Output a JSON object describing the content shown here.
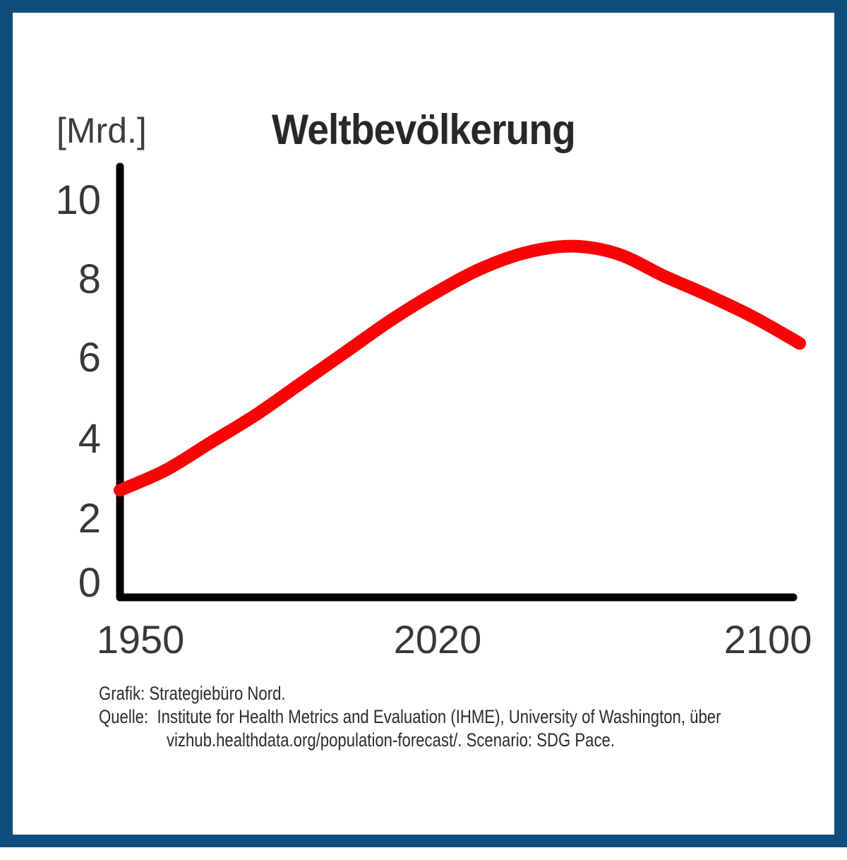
{
  "frame": {
    "border_color": "#114d7a"
  },
  "chart": {
    "title": "Weltbevölkerung",
    "y_axis_unit_label": "[Mrd.]",
    "y_ticks": [
      "10",
      "8",
      "6",
      "4",
      "2",
      "0"
    ],
    "x_ticks": [
      "1950",
      "2020",
      "2100"
    ],
    "axis_color": "#000000"
  },
  "credits": {
    "line1": "Grafik: Strategiebüro Nord.",
    "line2": "Quelle:  Institute for Health Metrics and Evaluation (IHME), University of Washington, über",
    "line3": "vizhub.healthdata.org/population-forecast/. Scenario: SDG Pace."
  },
  "chart_data": {
    "type": "line",
    "title": "Weltbevölkerung",
    "xlabel": "",
    "ylabel": "[Mrd.]",
    "xlim": [
      1950,
      2100
    ],
    "ylim": [
      0,
      10.5
    ],
    "grid": false,
    "legend": false,
    "line_color": "#f80404",
    "x_tick_labels": [
      "1950",
      "2020",
      "2100"
    ],
    "y_tick_values": [
      0,
      2,
      4,
      6,
      8,
      10
    ],
    "x": [
      1950,
      1960,
      1970,
      1980,
      1990,
      2000,
      2010,
      2020,
      2030,
      2040,
      2050,
      2060,
      2070,
      2080,
      2090,
      2100
    ],
    "series": [
      {
        "name": "Weltbevölkerung",
        "values": [
          2.7,
          3.2,
          3.9,
          4.6,
          5.4,
          6.2,
          7.0,
          7.7,
          8.3,
          8.7,
          8.85,
          8.65,
          8.1,
          7.6,
          7.05,
          6.4
        ]
      }
    ]
  }
}
